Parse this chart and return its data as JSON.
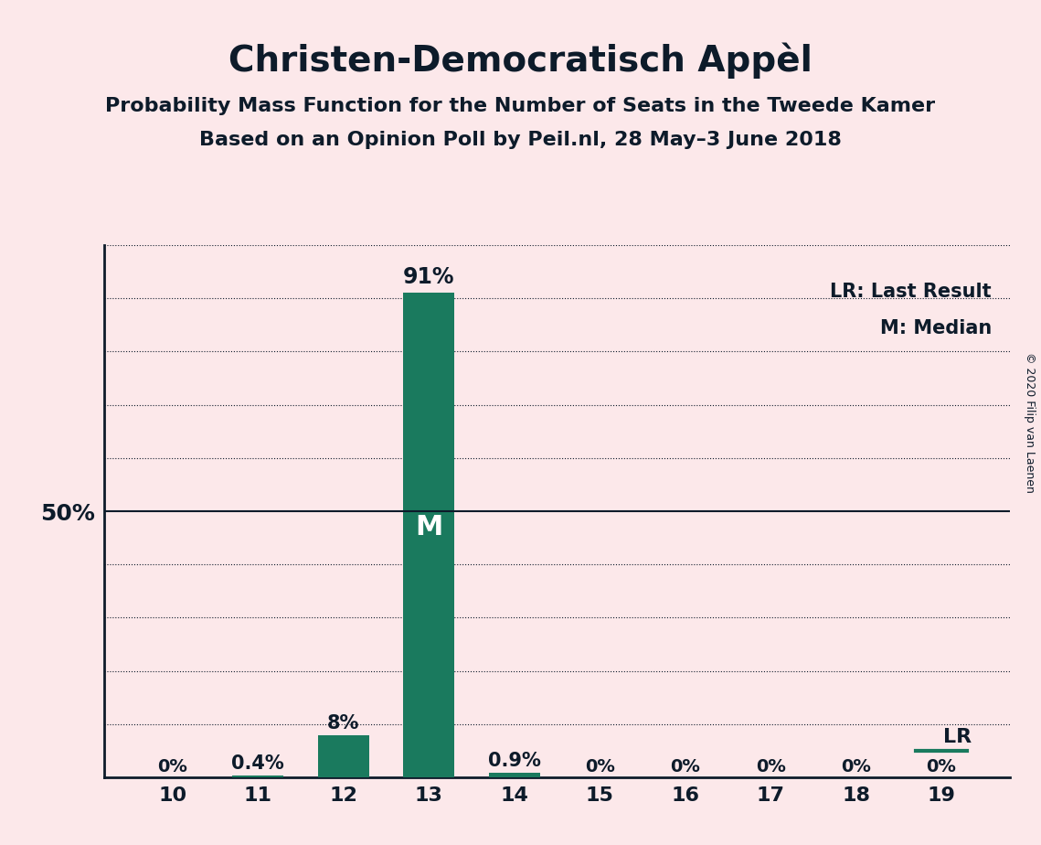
{
  "title": "Christen-Democratisch Appel",
  "title_display": "Christen-Democratisch Appèl",
  "subtitle1": "Probability Mass Function for the Number of Seats in the Tweede Kamer",
  "subtitle2": "Based on an Opinion Poll by Peil.nl, 28 May–3 June 2018",
  "copyright": "© 2020 Filip van Laenen",
  "seats": [
    10,
    11,
    12,
    13,
    14,
    15,
    16,
    17,
    18,
    19
  ],
  "probabilities": [
    0.0,
    0.4,
    8.0,
    91.0,
    0.9,
    0.0,
    0.0,
    0.0,
    0.0,
    0.0
  ],
  "bar_color": "#1a7a5e",
  "background_color": "#fce8ea",
  "text_color": "#0d1b2a",
  "median_seat": 13,
  "last_result_seat": 19,
  "fifty_pct_line": 50,
  "ylim": [
    0,
    100
  ],
  "legend_lr": "LR: Last Result",
  "legend_m": "M: Median",
  "bar_width": 0.6
}
